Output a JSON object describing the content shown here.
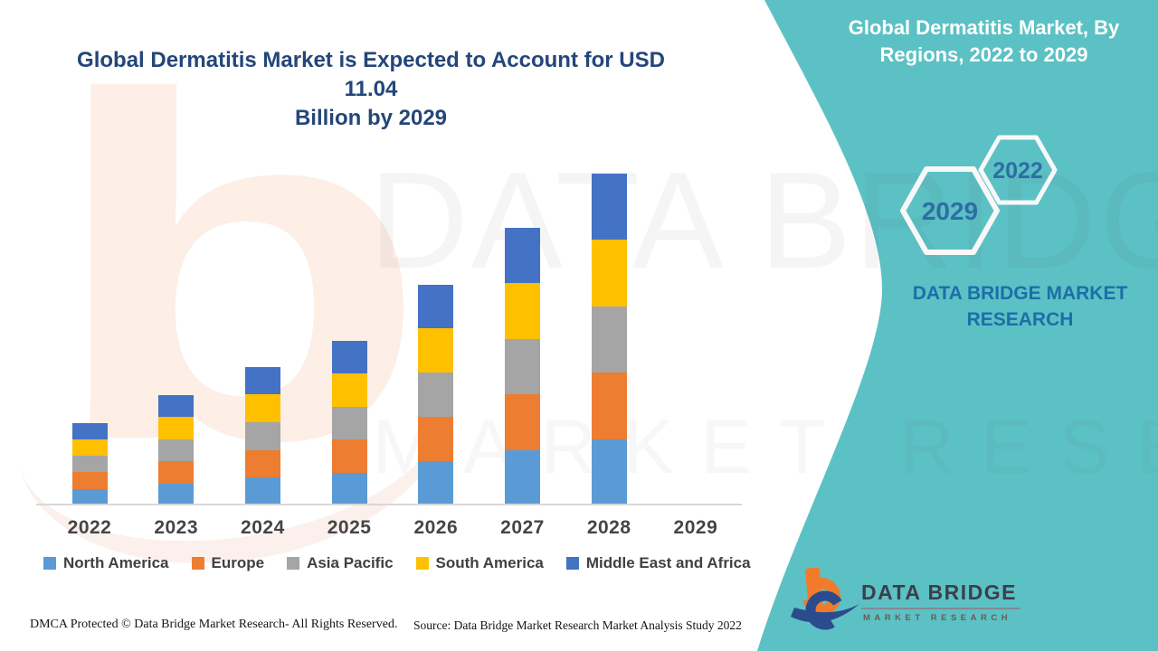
{
  "header": {
    "title_lines": [
      "Global Dermatitis Market is Expected to Account for USD 11.04",
      "Billion by 2029"
    ],
    "title_color": "#24467A"
  },
  "side_panel": {
    "background_color": "#5CC1C4",
    "title_lines": [
      "Global Dermatitis Market, By",
      "Regions, 2022 to 2029"
    ],
    "badges": {
      "front": "2029",
      "back": "2022"
    },
    "brand_caption_lines": [
      "DATA BRIDGE MARKET",
      "RESEARCH"
    ],
    "badge_text_color": "#2E6DA5",
    "caption_color": "#1C6FA8"
  },
  "chart_data": {
    "type": "bar",
    "stacked": true,
    "title": "Global Dermatitis Market is Expected to Account for USD 11.04 Billion by 2029",
    "xlabel": "",
    "ylabel": "",
    "y_axis_shown": false,
    "gridlines": false,
    "legend_position": "bottom",
    "units_est": "USD billion (estimated, no value axis shown)",
    "categories": [
      "2022",
      "2023",
      "2024",
      "2025",
      "2026",
      "2027",
      "2028",
      "2029"
    ],
    "series": [
      {
        "name": "North America",
        "color": "#5B9BD5",
        "values": [
          0.47,
          0.63,
          0.79,
          0.94,
          1.26,
          1.58,
          1.89,
          null
        ]
      },
      {
        "name": "Europe",
        "color": "#ED7D31",
        "values": [
          0.47,
          0.63,
          0.79,
          0.94,
          1.26,
          1.58,
          1.89,
          null
        ]
      },
      {
        "name": "Asia Pacific",
        "color": "#A5A5A5",
        "values": [
          0.47,
          0.63,
          0.79,
          0.94,
          1.26,
          1.58,
          1.89,
          null
        ]
      },
      {
        "name": "South America",
        "color": "#FFC000",
        "values": [
          0.47,
          0.63,
          0.79,
          0.94,
          1.26,
          1.58,
          1.89,
          null
        ]
      },
      {
        "name": "Middle East and Africa",
        "color": "#4472C4",
        "values": [
          0.47,
          0.63,
          0.79,
          0.94,
          1.26,
          1.58,
          1.89,
          null
        ]
      }
    ],
    "totals_usd_billion_est": [
      2.35,
      3.15,
      3.95,
      4.7,
      6.3,
      7.9,
      9.45,
      null
    ]
  },
  "watermarks": {
    "logo_letter": "b",
    "big_text": "DATA BRIDGE",
    "sub_text": "MARKET RESEARCH"
  },
  "logo": {
    "name_text": "DATA BRIDGE",
    "sub_text": "MARKET RESEARCH",
    "orange": "#F07B2B",
    "navy": "#2B4B8C"
  },
  "footer": {
    "dmca": "DMCA Protected © Data Bridge Market Research- All Rights Reserved.",
    "source": "Source: Data Bridge Market Research Market Analysis Study 2022"
  }
}
